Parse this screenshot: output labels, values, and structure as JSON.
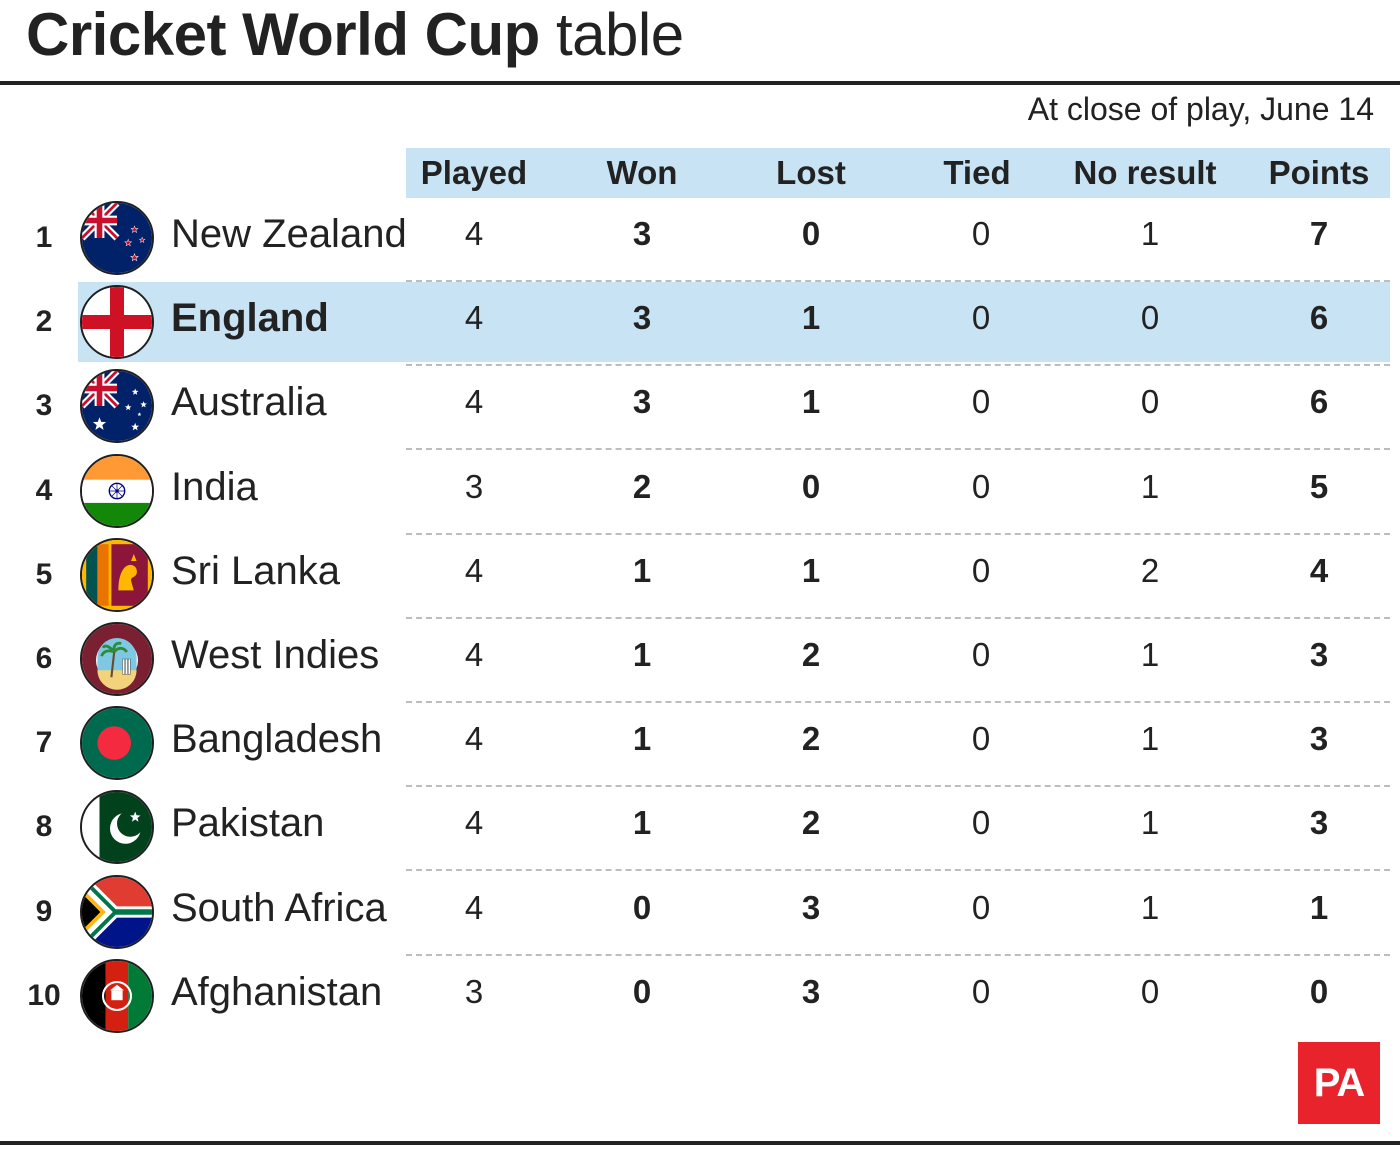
{
  "title": {
    "bold": "Cricket World Cup",
    "light": "table"
  },
  "subtitle": "At close of play, June 14",
  "columns": [
    "Played",
    "Won",
    "Lost",
    "Tied",
    "No result",
    "Points"
  ],
  "highlight_color": "#c8e4f4",
  "logo_text": "PA",
  "chart_data": {
    "type": "table",
    "title": "Cricket World Cup table",
    "subtitle": "At close of play, June 14",
    "columns": [
      "Played",
      "Won",
      "Lost",
      "Tied",
      "No result",
      "Points"
    ],
    "rows": [
      {
        "pos": "1",
        "team": "New Zealand",
        "flag": "new-zealand-flag-icon",
        "values": [
          4,
          3,
          0,
          0,
          1,
          7
        ],
        "highlight": false
      },
      {
        "pos": "2",
        "team": "England",
        "flag": "england-flag-icon",
        "values": [
          4,
          3,
          1,
          0,
          0,
          6
        ],
        "highlight": true
      },
      {
        "pos": "3",
        "team": "Australia",
        "flag": "australia-flag-icon",
        "values": [
          4,
          3,
          1,
          0,
          0,
          6
        ],
        "highlight": false
      },
      {
        "pos": "4",
        "team": "India",
        "flag": "india-flag-icon",
        "values": [
          3,
          2,
          0,
          0,
          1,
          5
        ],
        "highlight": false
      },
      {
        "pos": "5",
        "team": "Sri Lanka",
        "flag": "sri-lanka-flag-icon",
        "values": [
          4,
          1,
          1,
          0,
          2,
          4
        ],
        "highlight": false
      },
      {
        "pos": "6",
        "team": "West Indies",
        "flag": "west-indies-flag-icon",
        "values": [
          4,
          1,
          2,
          0,
          1,
          3
        ],
        "highlight": false
      },
      {
        "pos": "7",
        "team": "Bangladesh",
        "flag": "bangladesh-flag-icon",
        "values": [
          4,
          1,
          2,
          0,
          1,
          3
        ],
        "highlight": false
      },
      {
        "pos": "8",
        "team": "Pakistan",
        "flag": "pakistan-flag-icon",
        "values": [
          4,
          1,
          2,
          0,
          1,
          3
        ],
        "highlight": false
      },
      {
        "pos": "9",
        "team": "South Africa",
        "flag": "south-africa-flag-icon",
        "values": [
          4,
          0,
          3,
          0,
          1,
          1
        ],
        "highlight": false
      },
      {
        "pos": "10",
        "team": "Afghanistan",
        "flag": "afghanistan-flag-icon",
        "values": [
          3,
          0,
          3,
          0,
          0,
          0
        ],
        "highlight": false
      }
    ]
  }
}
